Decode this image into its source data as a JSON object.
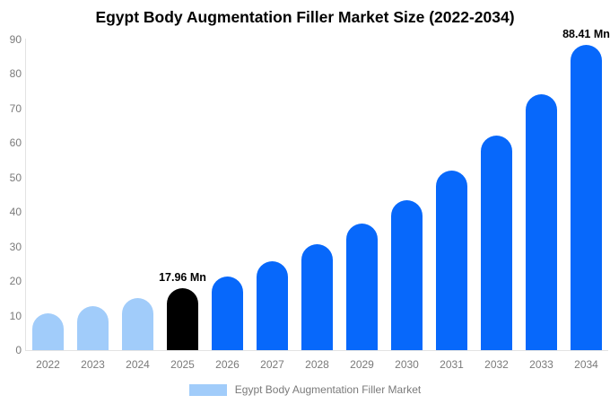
{
  "title": "Egypt Body Augmentation Filler Market Size (2022-2034)",
  "legend": {
    "label": "Egypt Body Augmentation Filler Market"
  },
  "colors": {
    "historical_bar": "#a1ccfa",
    "base_year_bar": "#000000",
    "forecast_bar": "#0768fb",
    "axis_line": "#e3e3e3",
    "tick_label": "#7a7a7a",
    "data_label": "#000000",
    "title_text": "#000000",
    "background": "#ffffff"
  },
  "chart_data": {
    "type": "bar",
    "title": "Egypt Body Augmentation Filler Market Size (2022-2034)",
    "unit": "Mn",
    "categories": [
      "2022",
      "2023",
      "2024",
      "2025",
      "2026",
      "2027",
      "2028",
      "2029",
      "2030",
      "2031",
      "2032",
      "2033",
      "2034"
    ],
    "values": [
      10.6,
      12.6,
      15.1,
      17.96,
      21.4,
      25.6,
      30.6,
      36.5,
      43.5,
      52.0,
      62.0,
      74.1,
      88.41
    ],
    "bar_color_roles": [
      "historical",
      "historical",
      "historical",
      "base_year",
      "forecast",
      "forecast",
      "forecast",
      "forecast",
      "forecast",
      "forecast",
      "forecast",
      "forecast",
      "forecast"
    ],
    "data_labels": [
      {
        "category": "2025",
        "text": "17.96 Mn"
      },
      {
        "category": "2034",
        "text": "88.41 Mn"
      }
    ],
    "xlabel": "",
    "ylabel": "",
    "ylim": [
      0,
      90
    ],
    "yticks": [
      0,
      10,
      20,
      30,
      40,
      50,
      60,
      70,
      80,
      90
    ],
    "grid": false,
    "legend_position": "bottom",
    "legend_entries": [
      "Egypt Body Augmentation Filler Market"
    ]
  }
}
